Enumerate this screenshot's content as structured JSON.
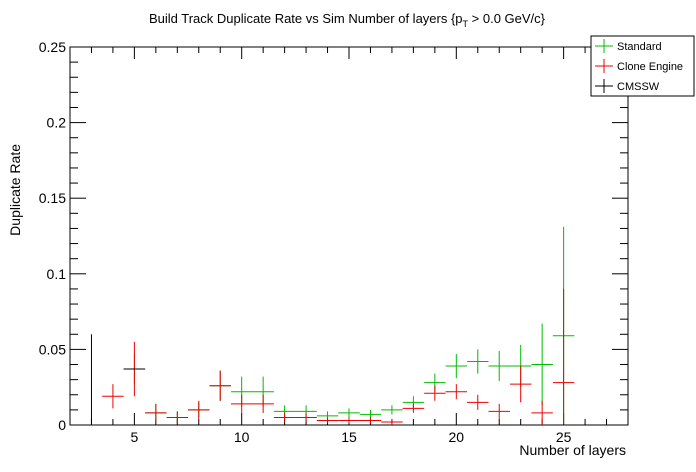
{
  "chart_data": {
    "type": "scatter",
    "title": {
      "pre": "Build Track Duplicate Rate vs Sim Number of layers {p",
      "sub": "T",
      "post": " > 0.0 GeV/c}"
    },
    "xlabel": "Number of layers",
    "ylabel": "Duplicate Rate",
    "xlim": [
      2,
      28
    ],
    "ylim": [
      0,
      0.25
    ],
    "x_ticks": [
      5,
      10,
      15,
      20,
      25
    ],
    "x_tick_labels": [
      "5",
      "10",
      "15",
      "20",
      "25"
    ],
    "y_ticks": [
      0,
      0.05,
      0.1,
      0.15,
      0.2,
      0.25
    ],
    "y_tick_labels": [
      "0",
      "0.05",
      "0.1",
      "0.15",
      "0.2",
      "0.25"
    ],
    "grid": false,
    "legend_position": "top-right",
    "series": [
      {
        "name": "Standard",
        "color": "#00bb00",
        "x": [
          5,
          6,
          7,
          8,
          9,
          10,
          11,
          12,
          13,
          14,
          15,
          16,
          17,
          18,
          19,
          20,
          21,
          22,
          23,
          24,
          25
        ],
        "y": [
          0.037,
          0.008,
          0.005,
          0.01,
          0.026,
          0.022,
          0.022,
          0.009,
          0.009,
          0.006,
          0.008,
          0.007,
          0.01,
          0.015,
          0.028,
          0.039,
          0.042,
          0.039,
          0.039,
          0.04,
          0.059
        ],
        "yerr": [
          0.01,
          0.006,
          0.004,
          0.005,
          0.01,
          0.01,
          0.01,
          0.004,
          0.004,
          0.003,
          0.003,
          0.003,
          0.003,
          0.004,
          0.006,
          0.008,
          0.008,
          0.01,
          0.014,
          0.027,
          0.072
        ]
      },
      {
        "name": "Clone Engine",
        "color": "#ee0000",
        "x": [
          4,
          5,
          6,
          7,
          8,
          9,
          10,
          11,
          12,
          13,
          14,
          15,
          16,
          17,
          18,
          19,
          20,
          21,
          22,
          23,
          24,
          25
        ],
        "y": [
          0.019,
          0.037,
          0.008,
          0.005,
          0.01,
          0.026,
          0.014,
          0.014,
          0.005,
          0.005,
          0.003,
          0.003,
          0.003,
          0.002,
          0.011,
          0.021,
          0.022,
          0.015,
          0.009,
          0.027,
          0.008,
          0.028
        ],
        "yerr": [
          0.008,
          0.018,
          0.006,
          0.004,
          0.006,
          0.01,
          0.006,
          0.006,
          0.003,
          0.003,
          0.002,
          0.002,
          0.002,
          0.002,
          0.003,
          0.005,
          0.005,
          0.005,
          0.005,
          0.012,
          0.008,
          0.062
        ]
      },
      {
        "name": "CMSSW",
        "color": "#000000",
        "x": [
          3,
          5,
          25
        ],
        "y": [
          0.0,
          0.037,
          0.0
        ],
        "yerr": [
          0.06,
          0.0,
          0.0
        ]
      }
    ]
  }
}
